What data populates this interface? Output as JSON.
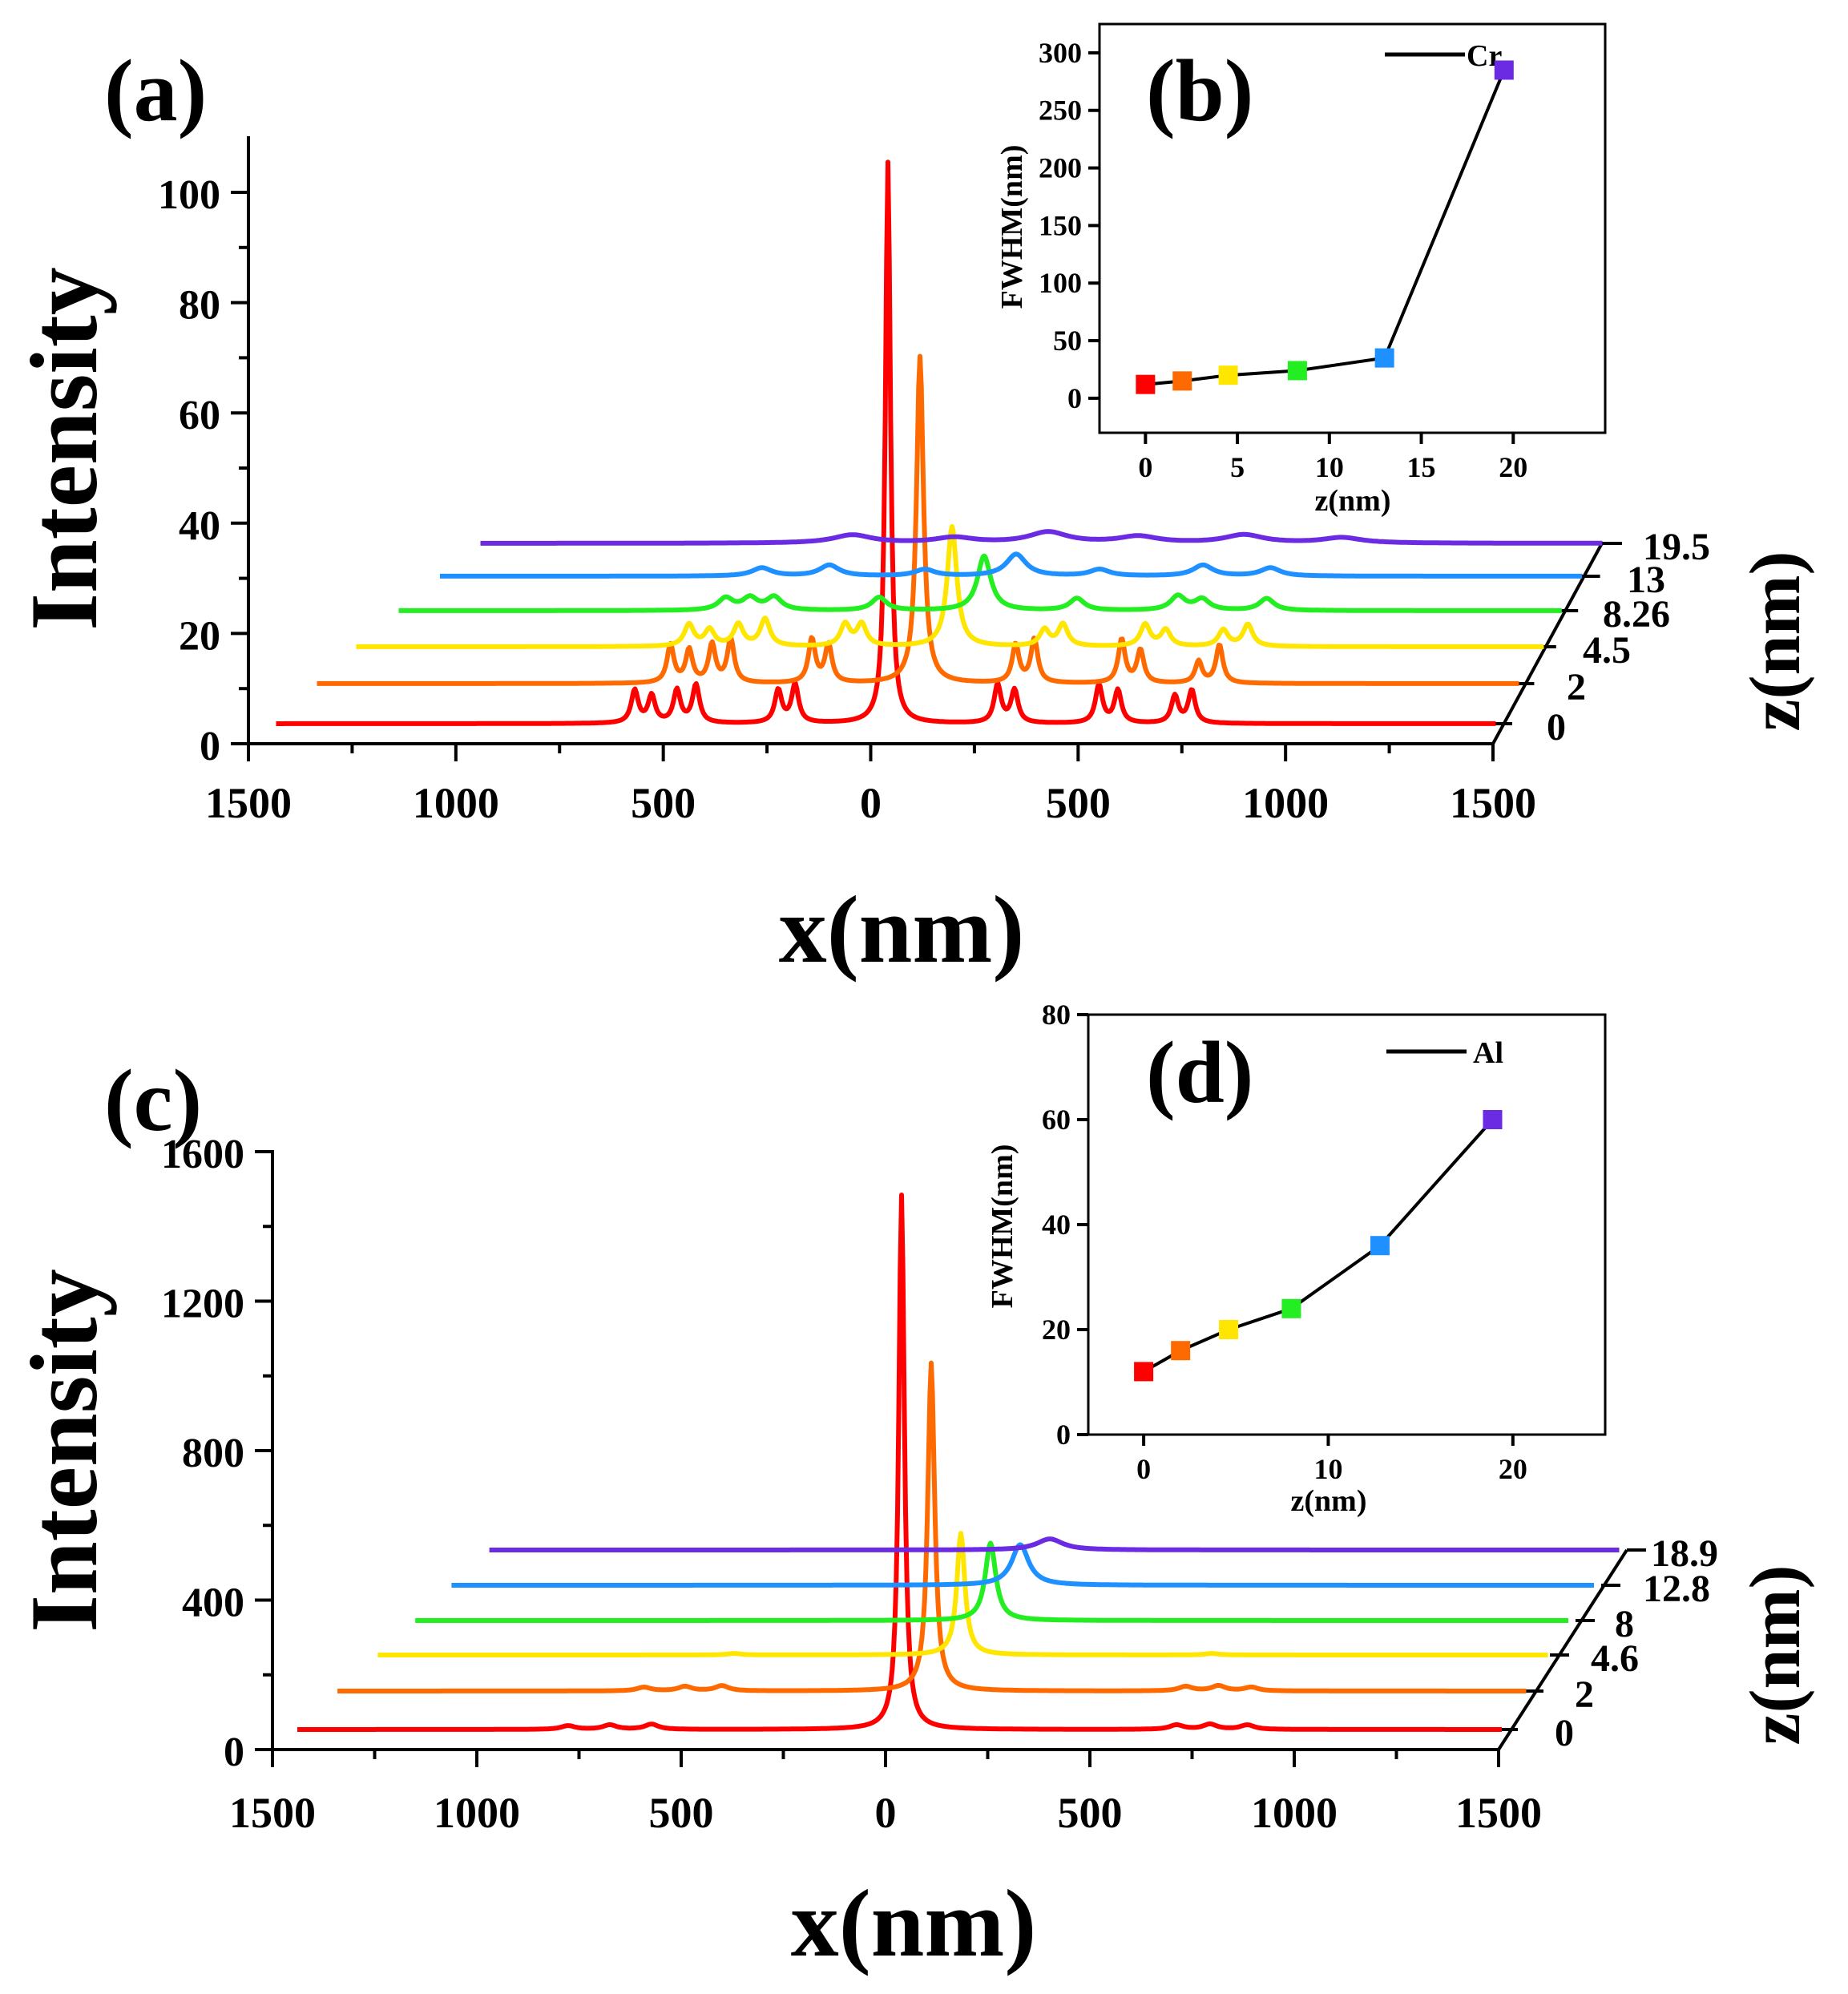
{
  "chart_data": [
    {
      "panel": "(a)",
      "type": "line",
      "title": "",
      "xlabel": "x(nm)",
      "ylabel": "Intensity",
      "zlabel": "z(nm)",
      "xlim": [
        -1500,
        1500
      ],
      "ylim": [
        0,
        110
      ],
      "x_ticks": [
        "1500",
        "1000",
        "500",
        "0",
        "500",
        "1000",
        "1500"
      ],
      "y_ticks": [
        "0",
        "20",
        "40",
        "60",
        "80",
        "100"
      ],
      "z_ticks": [
        "0",
        "2",
        "4.5",
        "8.26",
        "13",
        "19.5"
      ],
      "series": [
        {
          "z": "0",
          "color": "#ff0000",
          "baseline": 0,
          "peaks": [
            [
              0,
              103,
              7
            ],
            [
              -600,
              6,
              10
            ],
            [
              -560,
              5,
              10
            ],
            [
              -500,
              6,
              10
            ],
            [
              -455,
              7,
              10
            ],
            [
              -260,
              6,
              10
            ],
            [
              -220,
              7,
              10
            ],
            [
              260,
              7,
              10
            ],
            [
              300,
              6,
              10
            ],
            [
              500,
              7,
              10
            ],
            [
              545,
              6,
              10
            ],
            [
              680,
              5,
              10
            ],
            [
              720,
              6,
              10
            ]
          ]
        },
        {
          "z": "2",
          "color": "#ff6a00",
          "baseline": 0,
          "peaks": [
            [
              0,
              60,
              10
            ],
            [
              -600,
              7,
              10
            ],
            [
              -555,
              6,
              10
            ],
            [
              -500,
              7,
              10
            ],
            [
              -455,
              8,
              10
            ],
            [
              -260,
              8,
              10
            ],
            [
              -220,
              7,
              10
            ],
            [
              230,
              7,
              10
            ],
            [
              275,
              8,
              10
            ],
            [
              485,
              8,
              10
            ],
            [
              530,
              6,
              10
            ],
            [
              670,
              4,
              10
            ],
            [
              720,
              7,
              10
            ]
          ]
        },
        {
          "z": "4.5",
          "color": "#ffe600",
          "baseline": 0,
          "peaks": [
            [
              0,
              22,
              14
            ],
            [
              -640,
              4,
              14
            ],
            [
              -590,
              3,
              14
            ],
            [
              -520,
              4,
              14
            ],
            [
              -455,
              5,
              14
            ],
            [
              -260,
              4,
              14
            ],
            [
              -220,
              4,
              14
            ],
            [
              225,
              3,
              14
            ],
            [
              270,
              4,
              14
            ],
            [
              470,
              4,
              14
            ],
            [
              520,
              3,
              14
            ],
            [
              660,
              3,
              14
            ],
            [
              720,
              4,
              14
            ]
          ]
        },
        {
          "z": "8.26",
          "color": "#22ee22",
          "baseline": 0,
          "peaks": [
            [
              0,
              10,
              20
            ],
            [
              -640,
              2.2,
              22
            ],
            [
              -580,
              2.2,
              22
            ],
            [
              -520,
              2.4,
              22
            ],
            [
              -260,
              2.4,
              22
            ],
            [
              230,
              2.2,
              22
            ],
            [
              480,
              2.6,
              22
            ],
            [
              540,
              2,
              22
            ],
            [
              700,
              2.2,
              22
            ]
          ]
        },
        {
          "z": "13",
          "color": "#1e90ff",
          "baseline": 0,
          "peaks": [
            [
              0,
              4,
              30
            ],
            [
              -640,
              1.5,
              30
            ],
            [
              -470,
              2,
              30
            ],
            [
              -230,
              1.2,
              30
            ],
            [
              210,
              1.2,
              30
            ],
            [
              470,
              2,
              30
            ],
            [
              640,
              1.5,
              30
            ]
          ]
        },
        {
          "z": "19.5",
          "color": "#6a2be2",
          "baseline": 0,
          "peaks": [
            [
              0,
              2,
              60
            ],
            [
              -500,
              1.5,
              60
            ],
            [
              -240,
              1,
              60
            ],
            [
              230,
              1.2,
              60
            ],
            [
              500,
              1.5,
              60
            ],
            [
              750,
              1,
              60
            ]
          ]
        }
      ]
    },
    {
      "panel": "(b)",
      "type": "line",
      "xlabel": "z(nm)",
      "ylabel": "FWHM(nm)",
      "legend": "Cr",
      "xlim": [
        -2.5,
        25
      ],
      "ylim": [
        -30,
        325
      ],
      "x_ticks": [
        0,
        5,
        10,
        15,
        20
      ],
      "y_ticks": [
        0,
        50,
        100,
        150,
        200,
        250,
        300
      ],
      "x": [
        0,
        2,
        4.5,
        8.26,
        13,
        19.5
      ],
      "values": [
        12,
        15,
        20,
        24,
        35,
        285
      ],
      "colors": [
        "#ff0000",
        "#ff6a00",
        "#ffe600",
        "#22ee22",
        "#1e90ff",
        "#6a2be2"
      ]
    },
    {
      "panel": "(c)",
      "type": "line",
      "title": "",
      "xlabel": "x(nm)",
      "ylabel": "Intensity",
      "zlabel": "z(nm)",
      "xlim": [
        -1500,
        1500
      ],
      "ylim": [
        0,
        1600
      ],
      "x_ticks": [
        "1500",
        "1000",
        "500",
        "0",
        "500",
        "1000",
        "1500"
      ],
      "y_ticks": [
        "0",
        "400",
        "800",
        "1200",
        "1600"
      ],
      "z_ticks": [
        "0",
        "2",
        "4.6",
        "8",
        "12.8",
        "18.9"
      ],
      "series": [
        {
          "z": "0",
          "color": "#ff0000",
          "baseline": 0,
          "peaks": [
            [
              0,
              1450,
              8
            ],
            [
              -800,
              10,
              20
            ],
            [
              -700,
              12,
              20
            ],
            [
              -600,
              14,
              20
            ],
            [
              660,
              12,
              20
            ],
            [
              740,
              14,
              20
            ],
            [
              830,
              12,
              20
            ]
          ]
        },
        {
          "z": "2",
          "color": "#ff6a00",
          "baseline": 0,
          "peaks": [
            [
              0,
              890,
              10
            ],
            [
              -700,
              10,
              20
            ],
            [
              -600,
              12,
              20
            ],
            [
              -510,
              14,
              20
            ],
            [
              620,
              12,
              20
            ],
            [
              700,
              14,
              20
            ],
            [
              780,
              10,
              20
            ]
          ]
        },
        {
          "z": "4.6",
          "color": "#ffe600",
          "baseline": 0,
          "peaks": [
            [
              0,
              330,
              12
            ],
            [
              -560,
              4,
              20
            ],
            [
              620,
              4,
              20
            ]
          ]
        },
        {
          "z": "8",
          "color": "#22ee22",
          "baseline": 0,
          "peaks": [
            [
              0,
              210,
              16
            ]
          ]
        },
        {
          "z": "12.8",
          "color": "#1e90ff",
          "baseline": 0,
          "peaks": [
            [
              0,
              110,
              26
            ]
          ]
        },
        {
          "z": "18.9",
          "color": "#6a2be2",
          "baseline": 0,
          "peaks": [
            [
              0,
              30,
              40
            ]
          ]
        }
      ]
    },
    {
      "panel": "(d)",
      "type": "line",
      "xlabel": "z(nm)",
      "ylabel": "FWHM(nm)",
      "legend": "Al",
      "xlim": [
        -3,
        25
      ],
      "ylim": [
        0,
        80
      ],
      "x_ticks": [
        0,
        10,
        20
      ],
      "y_ticks": [
        0,
        20,
        40,
        60,
        80
      ],
      "x": [
        0,
        2,
        4.6,
        8,
        12.8,
        18.9
      ],
      "values": [
        12,
        16,
        20,
        24,
        36,
        60
      ],
      "colors": [
        "#ff0000",
        "#ff6a00",
        "#ffe600",
        "#22ee22",
        "#1e90ff",
        "#6a2be2"
      ]
    }
  ]
}
